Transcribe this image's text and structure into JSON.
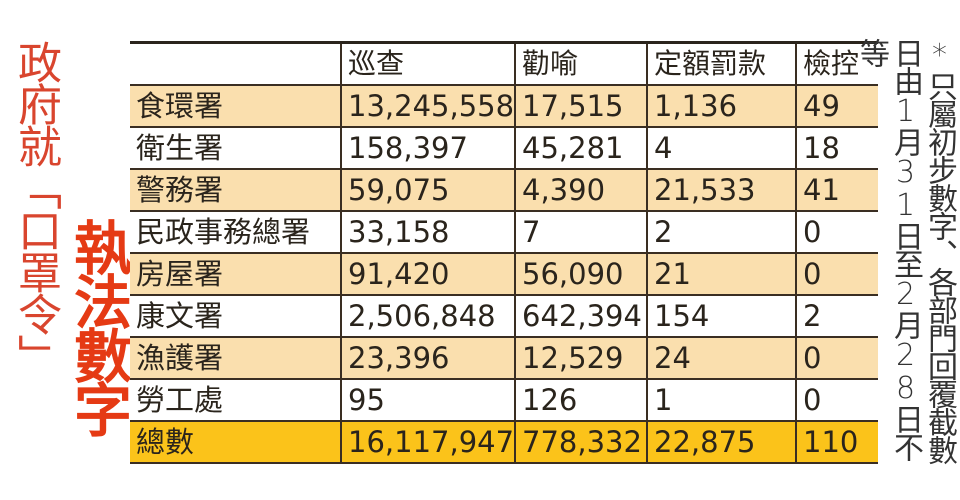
{
  "title": {
    "thin": "政府就「口罩令」",
    "bold": "執法數字"
  },
  "table": {
    "headers": [
      "",
      "巡查",
      "勸喻",
      "定額罰款",
      "檢控"
    ],
    "rows": [
      {
        "dept": "食環署",
        "patrol": "13,245,558",
        "advice": "17,515",
        "fixed_penalty": "1,136",
        "prosecution": "49",
        "stripe": true
      },
      {
        "dept": "衛生署",
        "patrol": "158,397",
        "advice": "45,281",
        "fixed_penalty": "4",
        "prosecution": "18",
        "stripe": false
      },
      {
        "dept": "警務署",
        "patrol": "59,075",
        "advice": "4,390",
        "fixed_penalty": "21,533",
        "prosecution": "41",
        "stripe": true
      },
      {
        "dept": "民政事務總署",
        "patrol": "33,158",
        "advice": "7",
        "fixed_penalty": "2",
        "prosecution": "0",
        "stripe": false
      },
      {
        "dept": "房屋署",
        "patrol": "91,420",
        "advice": "56,090",
        "fixed_penalty": "21",
        "prosecution": "0",
        "stripe": true
      },
      {
        "dept": "康文署",
        "patrol": "2,506,848",
        "advice": "642,394",
        "fixed_penalty": "154",
        "prosecution": "2",
        "stripe": false
      },
      {
        "dept": "漁護署",
        "patrol": "23,396",
        "advice": "12,529",
        "fixed_penalty": "24",
        "prosecution": "0",
        "stripe": true
      },
      {
        "dept": "勞工處",
        "patrol": "95",
        "advice": "126",
        "fixed_penalty": "1",
        "prosecution": "0",
        "stripe": false
      }
    ],
    "total": {
      "dept": "總數",
      "patrol": "16,117,947",
      "advice": "778,332",
      "fixed_penalty": "22,875",
      "prosecution": "110"
    }
  },
  "footnote": "*只屬初步數字、各部門回覆截數日由1月31日至2月28日不等",
  "colors": {
    "title_thin": "#d9452e",
    "title_bold": "#e53a14",
    "stripe": "#fadfae",
    "total": "#fbc31a",
    "rule": "#3a2e22"
  }
}
